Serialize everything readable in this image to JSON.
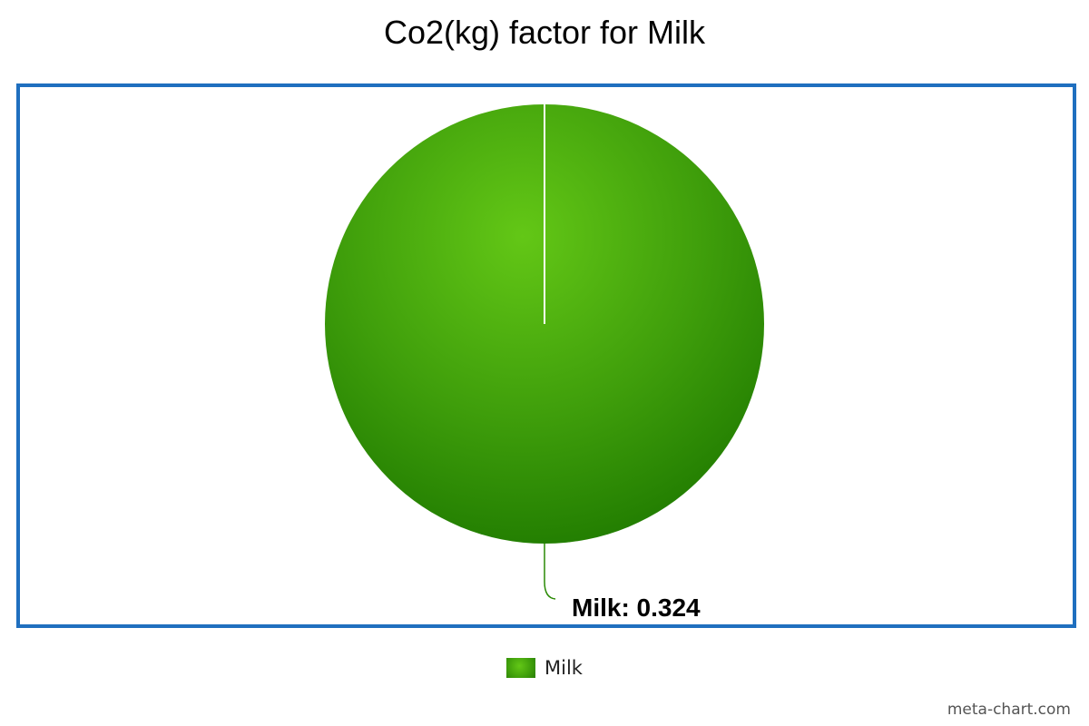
{
  "chart_data": {
    "type": "pie",
    "title": "Co2(kg) factor for Milk",
    "slices": [
      {
        "label": "Milk",
        "value": 0.324,
        "data_label": "Milk: 0.324",
        "color": "#3f9e0b"
      }
    ],
    "legend": {
      "placement": "bottom-center",
      "entries": [
        "Milk"
      ]
    }
  },
  "colors": {
    "frame_border": "#1f6fbf",
    "slice_light": "#63c716",
    "slice_dark": "#1f7a00"
  },
  "credit": "meta-chart.com"
}
